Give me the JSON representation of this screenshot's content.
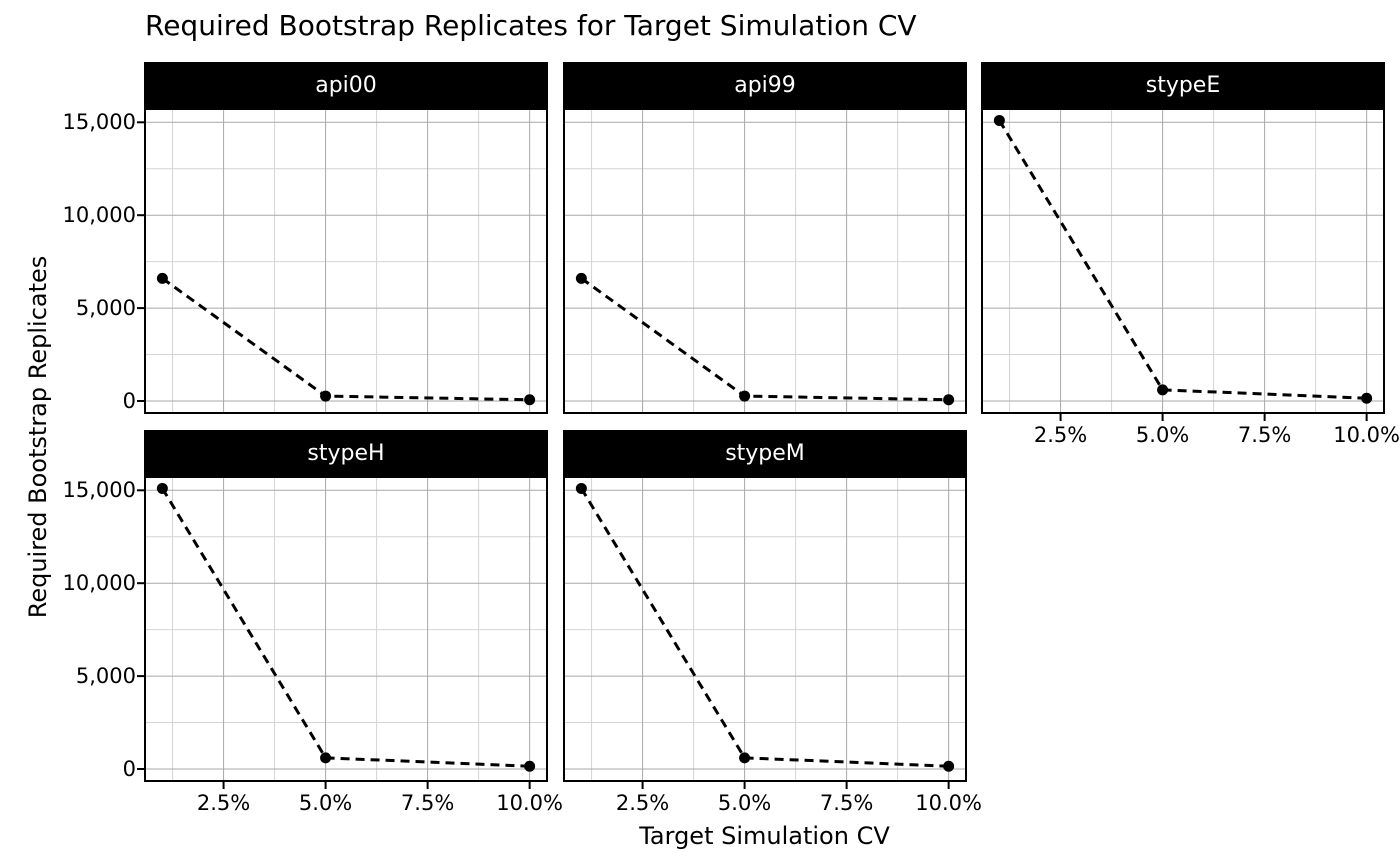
{
  "title": "Required Bootstrap Replicates for Target Simulation CV",
  "colors": {
    "grid_major": "#a8a8a8",
    "grid_minor": "#d4d4d4",
    "strip_bg": "#000000",
    "strip_text": "#ffffff",
    "panel_bg": "#ffffff",
    "panel_border": "#000000",
    "line": "#000000",
    "marker": "#000000"
  },
  "chart_data": {
    "type": "line",
    "title": "Required Bootstrap Replicates for Target Simulation CV",
    "xlabel": "Target Simulation CV",
    "ylabel": "Required Bootstrap Replicates",
    "facets": [
      {
        "name": "api00",
        "x": [
          1,
          5,
          10
        ],
        "y": [
          6600,
          265,
          66
        ]
      },
      {
        "name": "api99",
        "x": [
          1,
          5,
          10
        ],
        "y": [
          6600,
          265,
          66
        ]
      },
      {
        "name": "stypeE",
        "x": [
          1,
          5,
          10
        ],
        "y": [
          15100,
          600,
          150
        ]
      },
      {
        "name": "stypeH",
        "x": [
          1,
          5,
          10
        ],
        "y": [
          15100,
          600,
          150
        ]
      },
      {
        "name": "stypeM",
        "x": [
          1,
          5,
          10
        ],
        "y": [
          15100,
          600,
          150
        ]
      }
    ],
    "x": {
      "label": "Target Simulation CV",
      "unit": "%",
      "range": [
        0.55,
        10.45
      ],
      "ticks": [
        2.5,
        5,
        7.5,
        10
      ],
      "tick_labels": [
        "2.5%",
        "5.0%",
        "7.5%",
        "10.0%"
      ],
      "minor_ticks": [
        1.25,
        3.75,
        6.25,
        8.75
      ]
    },
    "y": {
      "label": "Required Bootstrap Replicates",
      "range": [
        -700,
        15770
      ],
      "ticks": [
        0,
        5000,
        10000,
        15000
      ],
      "tick_labels": [
        "0",
        "5,000",
        "10,000",
        "15,000"
      ],
      "minor_ticks": [
        2500,
        7500,
        12500
      ]
    },
    "style": {
      "line": "dashed",
      "marker": "circle",
      "grid": true,
      "legend": "none"
    }
  }
}
